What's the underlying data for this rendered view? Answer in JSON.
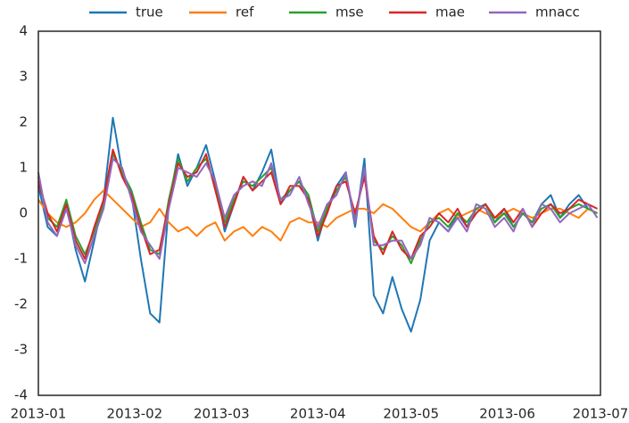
{
  "chart_data": {
    "type": "line",
    "x": [
      0,
      3,
      6,
      9,
      12,
      15,
      18,
      21,
      24,
      27,
      30,
      33,
      36,
      39,
      42,
      45,
      48,
      51,
      54,
      57,
      60,
      63,
      66,
      69,
      72,
      75,
      78,
      81,
      84,
      87,
      90,
      93,
      96,
      99,
      102,
      105,
      108,
      111,
      114,
      117,
      120,
      123,
      126,
      129,
      132,
      135,
      138,
      141,
      144,
      147,
      150,
      153,
      156,
      159,
      162,
      165,
      168,
      171,
      174,
      177,
      180
    ],
    "xlim": [
      0,
      181
    ],
    "xticks": [
      {
        "value": 0,
        "label": "2013-01"
      },
      {
        "value": 31,
        "label": "2013-02"
      },
      {
        "value": 59,
        "label": "2013-03"
      },
      {
        "value": 90,
        "label": "2013-04"
      },
      {
        "value": 120,
        "label": "2013-05"
      },
      {
        "value": 151,
        "label": "2013-06"
      },
      {
        "value": 181,
        "label": "2013-07"
      }
    ],
    "ylim": [
      -4,
      4
    ],
    "yticks": [
      -4,
      -3,
      -2,
      -1,
      0,
      1,
      2,
      3,
      4
    ],
    "grid": false,
    "legend": "top",
    "series": [
      {
        "name": "true",
        "color": "#1f77b4",
        "values": [
          0.6,
          -0.3,
          -0.5,
          0.2,
          -0.8,
          -1.5,
          -0.6,
          0.3,
          2.1,
          0.9,
          0.4,
          -1.0,
          -2.2,
          -2.4,
          0.2,
          1.3,
          0.6,
          1.0,
          1.5,
          0.7,
          -0.4,
          0.2,
          0.8,
          0.5,
          0.9,
          1.4,
          0.2,
          0.5,
          0.7,
          0.3,
          -0.6,
          0.1,
          0.6,
          0.9,
          -0.3,
          1.2,
          -1.8,
          -2.2,
          -1.4,
          -2.1,
          -2.6,
          -1.9,
          -0.6,
          -0.2,
          -0.4,
          0.0,
          -0.3,
          0.1,
          0.2,
          -0.2,
          0.1,
          -0.3,
          0.0,
          -0.2,
          0.2,
          0.4,
          -0.1,
          0.2,
          0.4,
          0.1,
          0.0
        ]
      },
      {
        "name": "ref",
        "color": "#ff7f0e",
        "values": [
          0.3,
          0.0,
          -0.2,
          -0.3,
          -0.2,
          0.0,
          0.3,
          0.5,
          0.3,
          0.1,
          -0.1,
          -0.3,
          -0.2,
          0.1,
          -0.2,
          -0.4,
          -0.3,
          -0.5,
          -0.3,
          -0.2,
          -0.6,
          -0.4,
          -0.3,
          -0.5,
          -0.3,
          -0.4,
          -0.6,
          -0.2,
          -0.1,
          -0.2,
          -0.2,
          -0.3,
          -0.1,
          0.0,
          0.1,
          0.1,
          0.0,
          0.2,
          0.1,
          -0.1,
          -0.3,
          -0.4,
          -0.2,
          0.0,
          0.1,
          -0.1,
          0.0,
          0.1,
          0.0,
          -0.1,
          0.0,
          0.1,
          0.0,
          -0.1,
          0.0,
          0.1,
          0.1,
          0.0,
          -0.1,
          0.1,
          0.0
        ]
      },
      {
        "name": "mse",
        "color": "#2ca02c",
        "values": [
          0.8,
          -0.1,
          -0.3,
          0.3,
          -0.5,
          -0.9,
          -0.4,
          0.2,
          1.3,
          0.9,
          0.5,
          -0.2,
          -0.8,
          -0.9,
          0.3,
          1.2,
          0.7,
          1.0,
          1.2,
          0.6,
          -0.2,
          0.3,
          0.7,
          0.6,
          0.8,
          1.0,
          0.3,
          0.5,
          0.7,
          0.4,
          -0.4,
          0.1,
          0.5,
          0.8,
          -0.1,
          0.9,
          -0.6,
          -0.8,
          -0.5,
          -0.7,
          -1.1,
          -0.6,
          -0.2,
          -0.1,
          -0.3,
          0.0,
          -0.2,
          0.1,
          0.2,
          -0.2,
          0.0,
          -0.3,
          0.0,
          -0.2,
          0.1,
          0.2,
          -0.1,
          0.1,
          0.2,
          0.1,
          0.0
        ]
      },
      {
        "name": "mae",
        "color": "#d62728",
        "values": [
          0.7,
          0.0,
          -0.4,
          0.2,
          -0.6,
          -1.0,
          -0.3,
          0.3,
          1.4,
          0.8,
          0.4,
          -0.3,
          -0.9,
          -0.8,
          0.2,
          1.1,
          0.8,
          0.9,
          1.3,
          0.5,
          -0.3,
          0.2,
          0.8,
          0.5,
          0.7,
          0.9,
          0.2,
          0.6,
          0.6,
          0.3,
          -0.5,
          0.0,
          0.6,
          0.7,
          0.0,
          0.8,
          -0.5,
          -0.9,
          -0.4,
          -0.8,
          -1.0,
          -0.5,
          -0.3,
          0.0,
          -0.2,
          0.1,
          -0.3,
          0.0,
          0.2,
          -0.1,
          0.1,
          -0.2,
          0.1,
          -0.3,
          0.0,
          0.2,
          0.0,
          0.1,
          0.3,
          0.2,
          0.1
        ]
      },
      {
        "name": "mnacc",
        "color": "#9467bd",
        "values": [
          0.9,
          -0.2,
          -0.5,
          0.1,
          -0.7,
          -1.1,
          -0.5,
          0.1,
          1.2,
          1.0,
          0.3,
          -0.4,
          -0.7,
          -1.0,
          0.1,
          1.0,
          0.9,
          0.8,
          1.1,
          0.7,
          -0.1,
          0.4,
          0.6,
          0.7,
          0.6,
          1.1,
          0.3,
          0.4,
          0.8,
          0.2,
          -0.3,
          0.2,
          0.4,
          0.9,
          -0.2,
          1.0,
          -0.7,
          -0.7,
          -0.6,
          -0.6,
          -1.0,
          -0.7,
          -0.1,
          -0.2,
          -0.4,
          -0.1,
          -0.4,
          0.2,
          0.1,
          -0.3,
          -0.1,
          -0.4,
          0.1,
          -0.3,
          0.2,
          0.1,
          -0.2,
          0.0,
          0.1,
          0.2,
          -0.1
        ]
      }
    ]
  }
}
